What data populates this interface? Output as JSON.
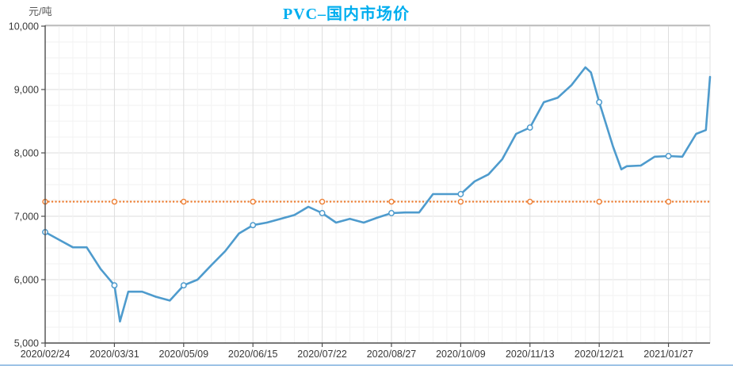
{
  "chart_data": {
    "type": "line",
    "title": "PVC–国内市场价",
    "unit": "元/吨",
    "ylim": [
      5000,
      10000
    ],
    "y_tick_step": 1000,
    "y_minor_step": 250,
    "y_tick_labels": [
      "5,000",
      "6,000",
      "7,000",
      "8,000",
      "9,000",
      "10,000"
    ],
    "x_labels": [
      "2020/02/24",
      "2020/03/31",
      "2020/05/09",
      "2020/06/15",
      "2020/07/22",
      "2020/08/27",
      "2020/10/09",
      "2020/11/13",
      "2020/12/21",
      "2021/01/27"
    ],
    "x_label_step": 5,
    "x_index_max": 48,
    "grid": true,
    "legend": "none",
    "series": [
      {
        "color": "#4E9BCD",
        "points": [
          [
            0,
            6750
          ],
          [
            1,
            6630
          ],
          [
            2,
            6510
          ],
          [
            3,
            6510
          ],
          [
            4,
            6170
          ],
          [
            5,
            5910
          ],
          [
            5.4,
            5340
          ],
          [
            6,
            5810
          ],
          [
            7,
            5810
          ],
          [
            8,
            5730
          ],
          [
            9,
            5670
          ],
          [
            10,
            5910
          ],
          [
            11,
            6000
          ],
          [
            12,
            6230
          ],
          [
            13,
            6450
          ],
          [
            14,
            6730
          ],
          [
            15,
            6860
          ],
          [
            16,
            6900
          ],
          [
            17,
            6960
          ],
          [
            18,
            7020
          ],
          [
            19,
            7150
          ],
          [
            20,
            7050
          ],
          [
            21,
            6900
          ],
          [
            22,
            6960
          ],
          [
            23,
            6900
          ],
          [
            24,
            6980
          ],
          [
            25,
            7050
          ],
          [
            26,
            7060
          ],
          [
            27,
            7060
          ],
          [
            28,
            7350
          ],
          [
            29,
            7350
          ],
          [
            30,
            7350
          ],
          [
            31,
            7550
          ],
          [
            32,
            7660
          ],
          [
            33,
            7900
          ],
          [
            34,
            8300
          ],
          [
            35,
            8400
          ],
          [
            36,
            8800
          ],
          [
            37,
            8870
          ],
          [
            38,
            9070
          ],
          [
            39,
            9350
          ],
          [
            39.4,
            9270
          ],
          [
            40,
            8800
          ],
          [
            41,
            8100
          ],
          [
            41.6,
            7740
          ],
          [
            42,
            7790
          ],
          [
            43,
            7800
          ],
          [
            44,
            7940
          ],
          [
            45,
            7950
          ],
          [
            46,
            7940
          ],
          [
            47,
            8300
          ],
          [
            47.7,
            8360
          ],
          [
            48,
            9200
          ]
        ],
        "marker_indices": [
          0,
          5,
          10,
          15,
          20,
          25,
          30,
          35,
          40,
          45
        ]
      }
    ],
    "reference_line": {
      "value": 7230,
      "color": "#ED7D31",
      "style": "dotted",
      "marker_indices": [
        0,
        5,
        10,
        15,
        20,
        25,
        30,
        35,
        40,
        45
      ]
    },
    "colors": {
      "title": "#00AEEF",
      "line": "#4E9BCD",
      "reference": "#ED7D31",
      "axis": "#4D4D4D",
      "tick_text": "#383838",
      "grid_minor": "#F2F2F2",
      "grid_major": "#DDDDDD",
      "border_top": "#B3B3B3",
      "border_right": "#E0E0E0",
      "footer_bar": "#9DC3E6"
    }
  }
}
